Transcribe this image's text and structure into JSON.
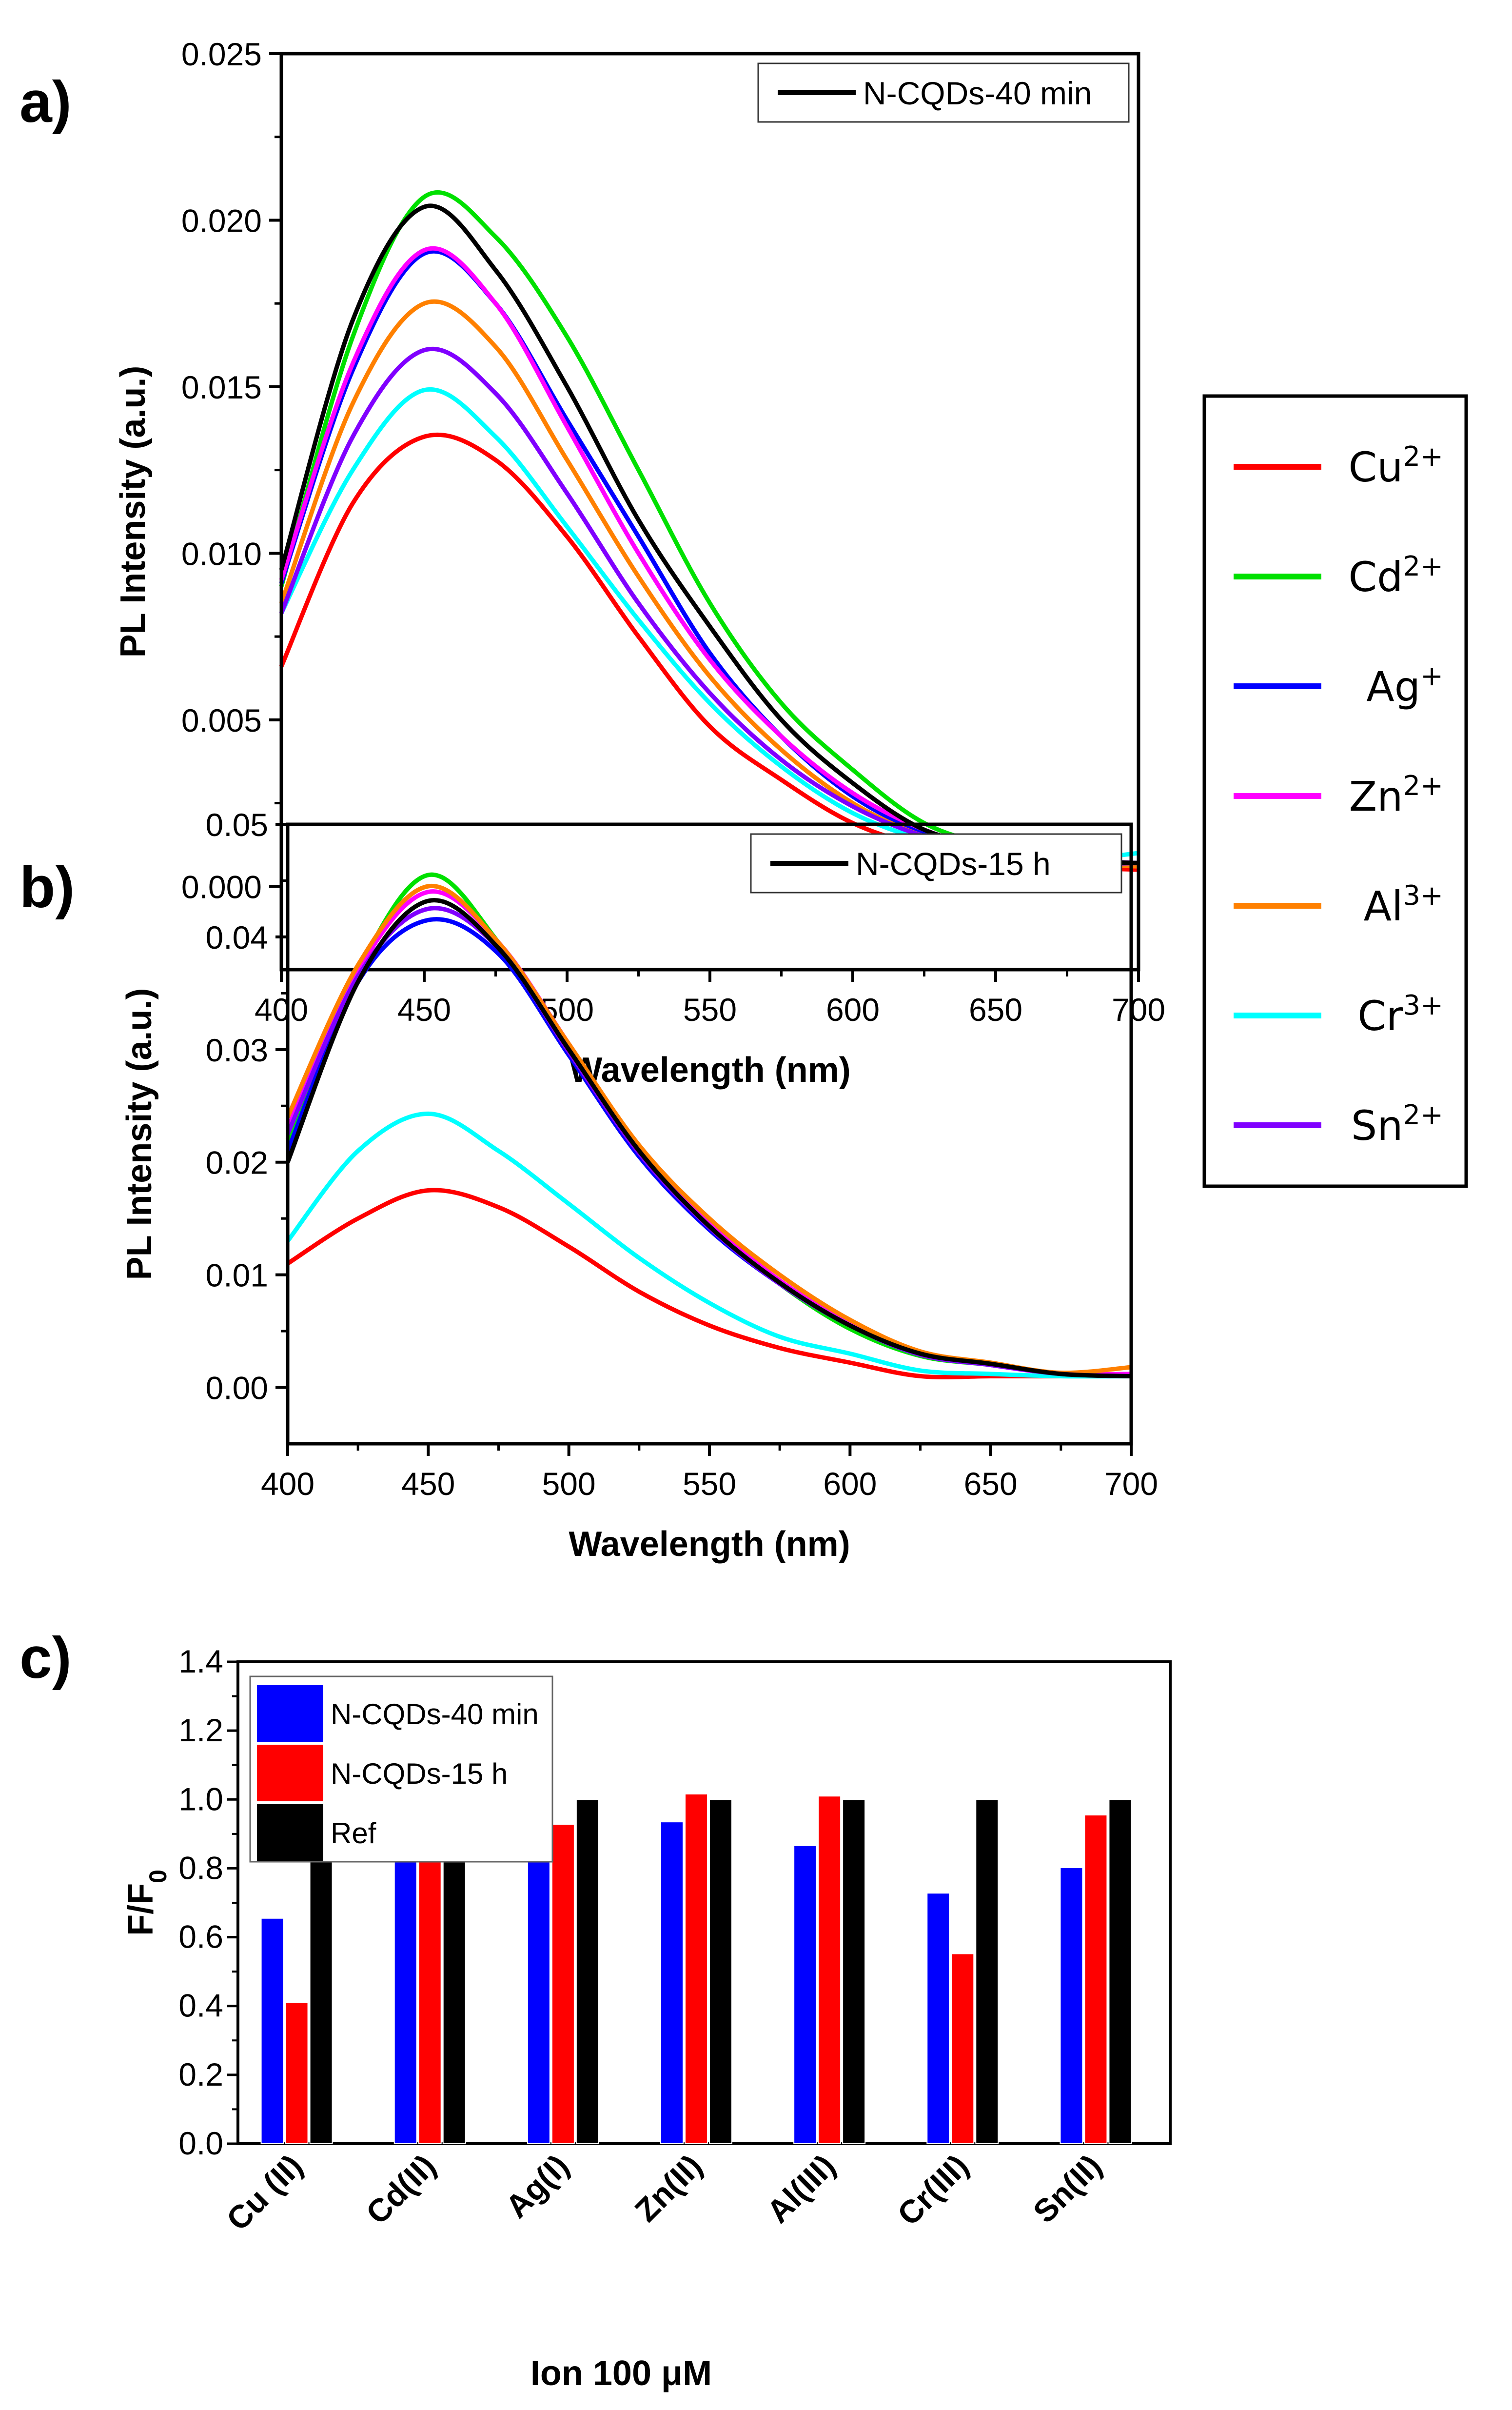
{
  "figure": {
    "panel_labels": [
      "a)",
      "b)",
      "c)"
    ],
    "ion_legend": [
      {
        "ion": "Cu",
        "charge": "2+",
        "color": "#ff0000"
      },
      {
        "ion": "Cd",
        "charge": "2+",
        "color": "#00e000"
      },
      {
        "ion": "Ag",
        "charge": "+",
        "color": "#0000ff"
      },
      {
        "ion": "Zn",
        "charge": "2+",
        "color": "#ff00ff"
      },
      {
        "ion": "Al",
        "charge": "3+",
        "color": "#ff8000"
      },
      {
        "ion": "Cr",
        "charge": "3+",
        "color": "#00ffff"
      },
      {
        "ion": "Sn",
        "charge": "2+",
        "color": "#8000ff"
      }
    ]
  },
  "chart_data": [
    {
      "type": "line",
      "panel": "a)",
      "xlabel": "Wavelength (nm)",
      "ylabel": "PL Intensity (a.u.)",
      "xlim": [
        400,
        700
      ],
      "ylim": [
        -0.0025,
        0.025
      ],
      "xticks": [
        "400",
        "450",
        "500",
        "550",
        "600",
        "650",
        "700"
      ],
      "yticks": [
        "0.000",
        "0.005",
        "0.010",
        "0.015",
        "0.020",
        "0.025"
      ],
      "legend": {
        "label": "N-CQDs-40 min",
        "placement": "top-right"
      },
      "x": [
        400,
        425,
        450,
        475,
        500,
        525,
        550,
        575,
        600,
        625,
        650,
        675,
        700
      ],
      "series": [
        {
          "name": "Cu2+",
          "color": "#ff0000",
          "values": [
            0.0066,
            0.0115,
            0.0135,
            0.0128,
            0.0105,
            0.0075,
            0.0048,
            0.0032,
            0.0019,
            0.0012,
            0.0009,
            0.0006,
            0.0005
          ]
        },
        {
          "name": "Cd2+",
          "color": "#00e000",
          "values": [
            0.009,
            0.0165,
            0.0207,
            0.0195,
            0.0165,
            0.0125,
            0.0085,
            0.0055,
            0.0035,
            0.0019,
            0.0012,
            0.0008,
            0.0007
          ]
        },
        {
          "name": "Ag+",
          "color": "#0000ff",
          "values": [
            0.0091,
            0.0155,
            0.019,
            0.0175,
            0.014,
            0.0105,
            0.007,
            0.0045,
            0.0027,
            0.0016,
            0.001,
            0.0008,
            0.0007
          ]
        },
        {
          "name": "Zn2+",
          "color": "#ff00ff",
          "values": [
            0.0092,
            0.0157,
            0.0191,
            0.0175,
            0.0138,
            0.01,
            0.0068,
            0.0045,
            0.0028,
            0.0017,
            0.0011,
            0.0008,
            0.0007
          ]
        },
        {
          "name": "Al3+",
          "color": "#ff8000",
          "values": [
            0.0085,
            0.0145,
            0.0175,
            0.0162,
            0.0128,
            0.0093,
            0.0063,
            0.0041,
            0.0025,
            0.0015,
            0.001,
            0.0007,
            0.0006
          ]
        },
        {
          "name": "Cr3+",
          "color": "#00ffff",
          "values": [
            0.0082,
            0.0125,
            0.0149,
            0.0135,
            0.0108,
            0.008,
            0.0055,
            0.0036,
            0.0022,
            0.0014,
            0.001,
            0.0008,
            0.001
          ]
        },
        {
          "name": "Sn2+",
          "color": "#8000ff",
          "values": [
            0.0082,
            0.0135,
            0.0161,
            0.0148,
            0.0118,
            0.0085,
            0.0058,
            0.0038,
            0.0024,
            0.0015,
            0.001,
            0.0007,
            0.0007
          ]
        },
        {
          "name": "N-CQDs-40 min",
          "color": "#000000",
          "values": [
            0.0095,
            0.017,
            0.0204,
            0.0185,
            0.015,
            0.011,
            0.0078,
            0.005,
            0.0031,
            0.0017,
            0.0012,
            0.0008,
            0.0007
          ]
        }
      ]
    },
    {
      "type": "line",
      "panel": "b)",
      "xlabel": "Wavelength (nm)",
      "ylabel": "PL Intensity (a.u.)",
      "xlim": [
        400,
        700
      ],
      "ylim": [
        -0.005,
        0.05
      ],
      "xticks": [
        "400",
        "450",
        "500",
        "550",
        "600",
        "650",
        "700"
      ],
      "yticks": [
        "0.00",
        "0.01",
        "0.02",
        "0.03",
        "0.04",
        "0.05"
      ],
      "legend": {
        "label": "N-CQDs-15 h",
        "placement": "top-right"
      },
      "x": [
        400,
        425,
        450,
        475,
        500,
        525,
        550,
        575,
        600,
        625,
        650,
        675,
        700
      ],
      "series": [
        {
          "name": "Cu2+",
          "color": "#ff0000",
          "values": [
            0.011,
            0.015,
            0.0175,
            0.016,
            0.0125,
            0.0085,
            0.0055,
            0.0035,
            0.0022,
            0.001,
            0.001,
            0.001,
            0.001
          ]
        },
        {
          "name": "Cd2+",
          "color": "#00e000",
          "values": [
            0.022,
            0.037,
            0.0455,
            0.0395,
            0.03,
            0.021,
            0.0145,
            0.0092,
            0.0052,
            0.0028,
            0.002,
            0.0012,
            0.0012
          ]
        },
        {
          "name": "Ag+",
          "color": "#0000ff",
          "values": [
            0.021,
            0.036,
            0.0415,
            0.0385,
            0.0295,
            0.0205,
            0.014,
            0.0092,
            0.0055,
            0.003,
            0.002,
            0.0012,
            0.001
          ]
        },
        {
          "name": "Zn2+",
          "color": "#ff00ff",
          "values": [
            0.023,
            0.037,
            0.044,
            0.0395,
            0.0305,
            0.0212,
            0.0147,
            0.0095,
            0.0057,
            0.003,
            0.002,
            0.0012,
            0.0012
          ]
        },
        {
          "name": "Al3+",
          "color": "#ff8000",
          "values": [
            0.024,
            0.0375,
            0.0445,
            0.0395,
            0.0305,
            0.0215,
            0.015,
            0.01,
            0.006,
            0.0032,
            0.0022,
            0.0013,
            0.0018
          ]
        },
        {
          "name": "Cr3+",
          "color": "#00ffff",
          "values": [
            0.013,
            0.021,
            0.0243,
            0.021,
            0.0163,
            0.0115,
            0.0075,
            0.0045,
            0.003,
            0.0015,
            0.0012,
            0.001,
            0.001
          ]
        },
        {
          "name": "Sn2+",
          "color": "#8000ff",
          "values": [
            0.0225,
            0.0365,
            0.0425,
            0.039,
            0.0298,
            0.0208,
            0.0142,
            0.0092,
            0.0055,
            0.0029,
            0.002,
            0.0012,
            0.001
          ]
        },
        {
          "name": "N-CQDs-15 h",
          "color": "#000000",
          "values": [
            0.02,
            0.036,
            0.0432,
            0.039,
            0.03,
            0.021,
            0.0143,
            0.0093,
            0.0055,
            0.003,
            0.0021,
            0.0012,
            0.001
          ]
        }
      ]
    },
    {
      "type": "bar",
      "panel": "c)",
      "xlabel": "Ion 100 μM",
      "ylabel": "F/F",
      "ylabel_subscript": "0",
      "ylim": [
        0,
        1.4
      ],
      "yticks": [
        "0.0",
        "0.2",
        "0.4",
        "0.6",
        "0.8",
        "1.0",
        "1.2",
        "1.4"
      ],
      "legend_placement": "top-left",
      "categories": [
        "Cu (II)",
        "Cd(II)",
        "Ag(I)",
        "Zn(II)",
        "Al(III)",
        "Cr(III)",
        "Sn(II)"
      ],
      "series": [
        {
          "name": "N-CQDs-40 min",
          "color": "#0000ff",
          "values": [
            0.655,
            1.01,
            0.942,
            0.935,
            0.866,
            0.728,
            0.802
          ]
        },
        {
          "name": "N-CQDs-15 h",
          "color": "#ff0000",
          "values": [
            0.41,
            1.01,
            0.928,
            1.016,
            1.01,
            0.552,
            0.955
          ]
        },
        {
          "name": "Ref",
          "color": "#000000",
          "values": [
            1.0,
            1.0,
            1.0,
            1.0,
            1.0,
            1.0,
            1.0
          ]
        }
      ]
    }
  ]
}
